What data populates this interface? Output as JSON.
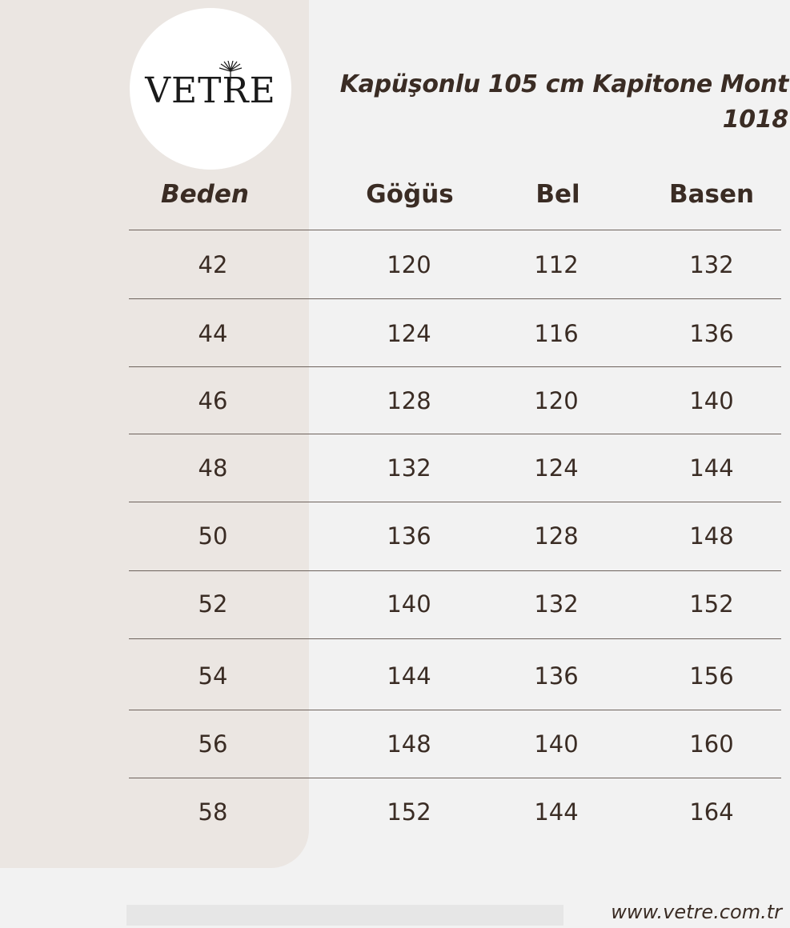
{
  "brand": {
    "logo_text": "VETRE",
    "logo_icon": "palm-leaf-icon"
  },
  "title": {
    "line1": "Kapüşonlu 105 cm Kapitone Mont",
    "line2": "1018"
  },
  "table": {
    "headers": [
      "Beden",
      "Göğüs",
      "Bel",
      "Basen"
    ],
    "rows": [
      [
        "42",
        "120",
        "112",
        "132"
      ],
      [
        "44",
        "124",
        "116",
        "136"
      ],
      [
        "46",
        "128",
        "120",
        "140"
      ],
      [
        "48",
        "132",
        "124",
        "144"
      ],
      [
        "50",
        "136",
        "128",
        "148"
      ],
      [
        "52",
        "140",
        "132",
        "152"
      ],
      [
        "54",
        "144",
        "136",
        "156"
      ],
      [
        "56",
        "148",
        "140",
        "160"
      ],
      [
        "58",
        "152",
        "144",
        "164"
      ]
    ]
  },
  "footer": {
    "url": "www.vetre.com.tr"
  },
  "colors": {
    "text": "#3a2c24",
    "panel": "#ebe6e2",
    "background": "#f2f2f2"
  }
}
